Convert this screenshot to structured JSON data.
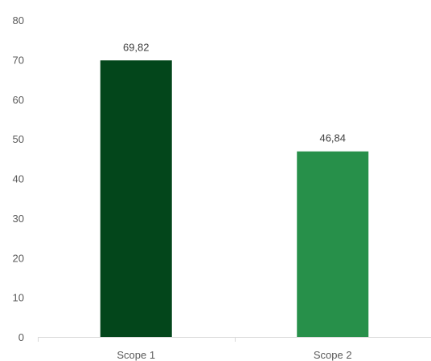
{
  "chart_data": {
    "type": "bar",
    "categories": [
      "Scope 1",
      "Scope 2"
    ],
    "values": [
      69.82,
      46.84
    ],
    "data_labels": [
      "69,82",
      "46,84"
    ],
    "bar_colors": [
      "#03461B",
      "#27904A"
    ],
    "ylim": [
      0,
      80
    ],
    "yticks": [
      "0",
      "10",
      "20",
      "30",
      "40",
      "50",
      "60",
      "70",
      "80"
    ],
    "grid": false,
    "title": "",
    "xlabel": "",
    "ylabel": ""
  }
}
